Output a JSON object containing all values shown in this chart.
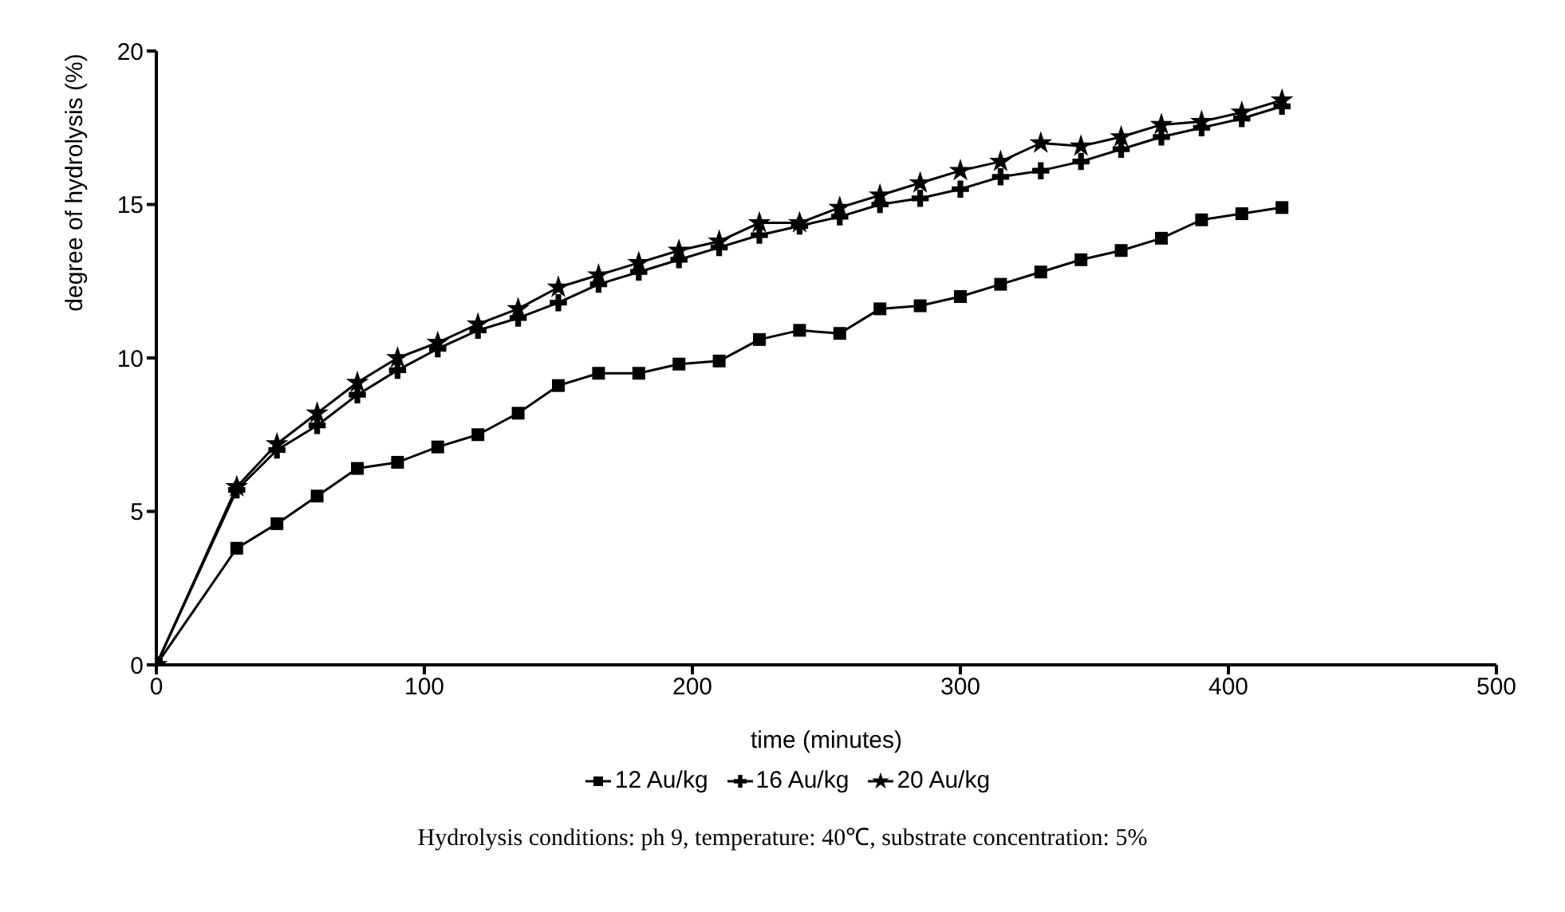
{
  "chart_data": {
    "type": "line",
    "xlabel": "time (minutes)",
    "ylabel": "degree of hydrolysis (%)",
    "x": [
      0,
      30,
      45,
      60,
      75,
      90,
      105,
      120,
      135,
      150,
      165,
      180,
      195,
      210,
      225,
      240,
      255,
      270,
      285,
      300,
      315,
      330,
      345,
      360,
      375,
      390,
      405,
      420
    ],
    "series": [
      {
        "name": "12 Au/kg",
        "color": "#000000",
        "marker": "square",
        "values": [
          0,
          3.8,
          4.6,
          5.5,
          6.4,
          6.6,
          7.1,
          7.5,
          8.2,
          9.1,
          9.5,
          9.5,
          9.8,
          9.9,
          10.6,
          10.9,
          10.8,
          11.6,
          11.7,
          12.0,
          12.4,
          12.8,
          13.2,
          13.5,
          13.9,
          14.5,
          14.7,
          14.9
        ]
      },
      {
        "name": "16 Au/kg",
        "color": "#000000",
        "marker": "cross",
        "values": [
          0,
          5.7,
          7.0,
          7.8,
          8.8,
          9.6,
          10.3,
          10.9,
          11.3,
          11.8,
          12.4,
          12.8,
          13.2,
          13.6,
          14.0,
          14.3,
          14.6,
          15.0,
          15.2,
          15.5,
          15.9,
          16.1,
          16.4,
          16.8,
          17.2,
          17.5,
          17.8,
          18.2
        ]
      },
      {
        "name": "20 Au/kg",
        "color": "#000000",
        "marker": "star",
        "values": [
          0,
          5.8,
          7.2,
          8.2,
          9.2,
          10.0,
          10.5,
          11.1,
          11.6,
          12.3,
          12.7,
          13.1,
          13.5,
          13.8,
          14.4,
          14.4,
          14.9,
          15.3,
          15.7,
          16.1,
          16.4,
          17.0,
          16.9,
          17.2,
          17.6,
          17.7,
          18.0,
          18.4
        ]
      }
    ],
    "xlim": [
      0,
      500
    ],
    "xticks": [
      0,
      100,
      200,
      300,
      400,
      500
    ],
    "ylim": [
      0,
      20
    ],
    "yticks": [
      0,
      5,
      10,
      15,
      20
    ],
    "grid": false,
    "legend": "bottom",
    "annotations": [
      "Hydrolysis conditions: ph 9, temperature: 40℃, substrate concentration: 5%"
    ]
  }
}
